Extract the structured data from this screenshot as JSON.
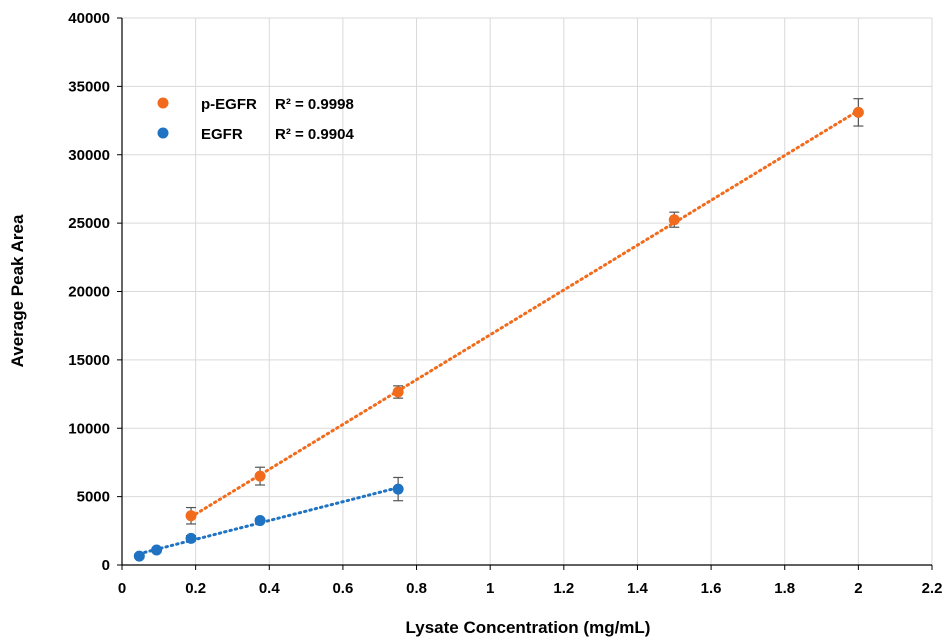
{
  "chart_data": {
    "type": "scatter",
    "title": "",
    "xlabel": "Lysate Concentration (mg/mL)",
    "ylabel": "Average Peak Area",
    "xlim": [
      0,
      2.2
    ],
    "ylim": [
      0,
      40000
    ],
    "x_ticks": [
      "0",
      "0.2",
      "0.4",
      "0.6",
      "0.8",
      "1",
      "1.2",
      "1.4",
      "1.6",
      "1.8",
      "2",
      "2.2"
    ],
    "y_ticks": [
      "0",
      "5000",
      "10000",
      "15000",
      "20000",
      "25000",
      "30000",
      "35000",
      "40000"
    ],
    "grid": true,
    "legend_position": "top-left",
    "series": [
      {
        "name": "p-EGFR",
        "r2_label": "R² = 0.9998",
        "color": "#F26B1D",
        "trendline": "linear-dotted",
        "points": [
          {
            "x": 0.1875,
            "y": 3600,
            "err": 600
          },
          {
            "x": 0.375,
            "y": 6500,
            "err": 650
          },
          {
            "x": 0.75,
            "y": 12650,
            "err": 450
          },
          {
            "x": 1.5,
            "y": 25250,
            "err": 550
          },
          {
            "x": 2.0,
            "y": 33100,
            "err": 1000
          }
        ]
      },
      {
        "name": "EGFR",
        "r2_label": "R² = 0.9904",
        "color": "#1F73C2",
        "trendline": "linear-dotted",
        "points": [
          {
            "x": 0.047,
            "y": 650,
            "err": 150
          },
          {
            "x": 0.094,
            "y": 1100,
            "err": 150
          },
          {
            "x": 0.1875,
            "y": 1950,
            "err": 200
          },
          {
            "x": 0.375,
            "y": 3250,
            "err": 150
          },
          {
            "x": 0.75,
            "y": 5550,
            "err": 850
          }
        ]
      }
    ]
  }
}
